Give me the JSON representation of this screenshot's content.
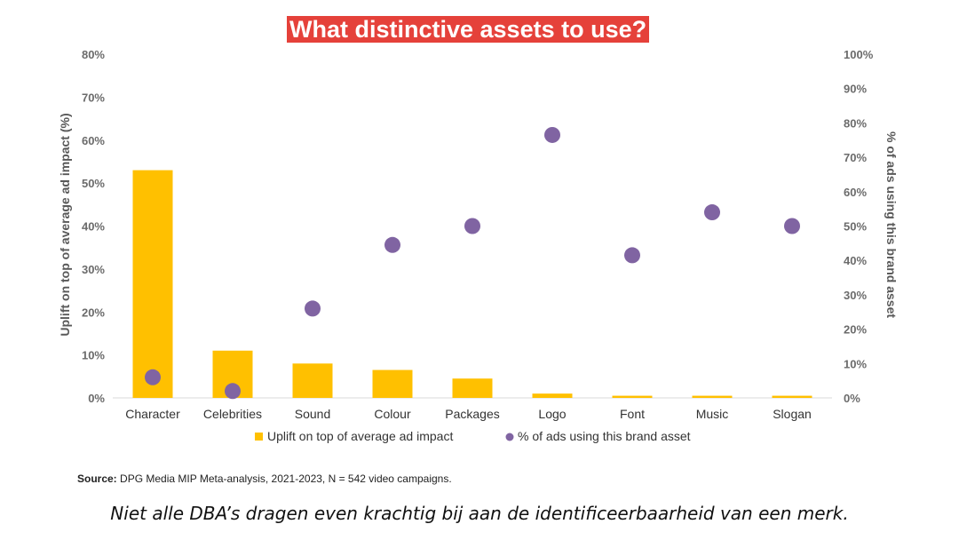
{
  "title": "What distinctive assets to use?",
  "source": {
    "label": "Source:",
    "text": "DPG Media MIP Meta-analysis, 2021-2023, N = 542 video campaigns."
  },
  "caption": "Niet alle DBA’s dragen even krachtig bij aan de identificeerbaarheid van een merk.",
  "colors": {
    "bar": "#ffc000",
    "dot": "#8064a2",
    "title_bg": "#e5413a"
  },
  "chart_data": {
    "type": "bar",
    "categories": [
      "Character",
      "Celebrities",
      "Sound",
      "Colour",
      "Packages",
      "Logo",
      "Font",
      "Music",
      "Slogan"
    ],
    "series": [
      {
        "name": "Uplift on top of average ad impact",
        "type": "bar",
        "axis": "left",
        "values": [
          53,
          11,
          8,
          6.5,
          4.5,
          1,
          0.5,
          0.5,
          0.5
        ]
      },
      {
        "name": "% of ads using this brand asset",
        "type": "scatter",
        "axis": "right",
        "values": [
          6,
          2,
          26,
          44.5,
          50,
          76.5,
          41.5,
          54,
          50
        ]
      }
    ],
    "ylabel": "Uplift on top of average ad impact (%)",
    "y2label": "% of ads using this brand asset",
    "ylim": [
      0,
      80
    ],
    "y2lim": [
      0,
      100
    ],
    "yticks": [
      "0%",
      "10%",
      "20%",
      "30%",
      "40%",
      "50%",
      "60%",
      "70%",
      "80%"
    ],
    "y2ticks": [
      "0%",
      "10%",
      "20%",
      "30%",
      "40%",
      "50%",
      "60%",
      "70%",
      "80%",
      "90%",
      "100%"
    ],
    "grid": false,
    "legend": "bottom"
  }
}
